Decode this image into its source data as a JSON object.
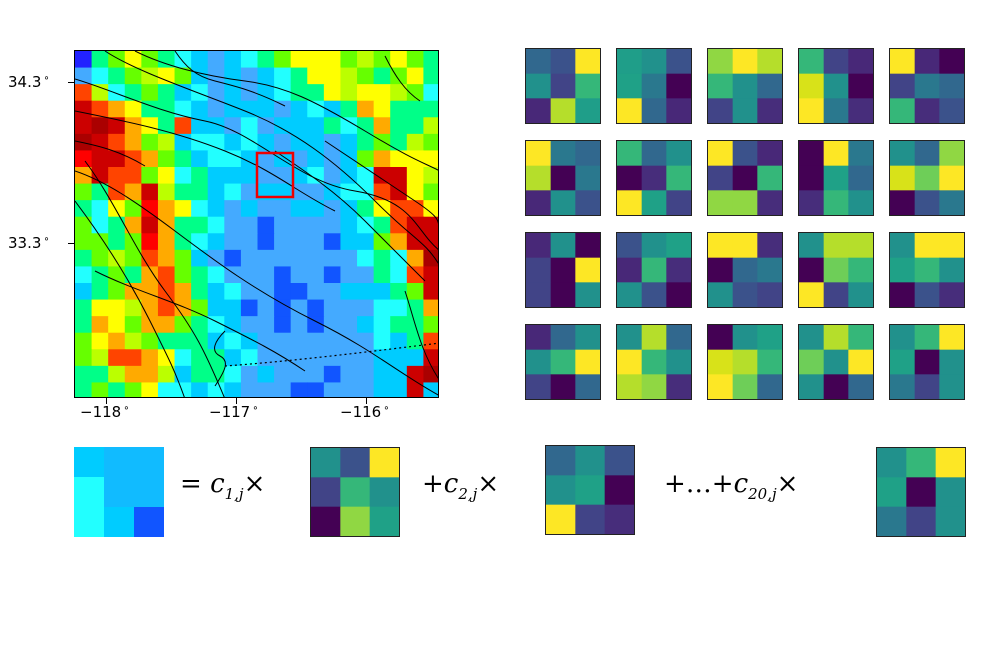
{
  "map": {
    "grid": [
      [
        "#22f",
        "#0f8",
        "#6f0",
        "#ff0",
        "#6f0",
        "#0f8",
        "#2ff",
        "#0cf",
        "#4af",
        "#0cf",
        "#2ff",
        "#0f8",
        "#6f0",
        "#ff0",
        "#ff0",
        "#ff0",
        "#6f0",
        "#bf0",
        "#6f0",
        "#ff0",
        "#6f0",
        "#0f8"
      ],
      [
        "#4af",
        "#2ff",
        "#0f8",
        "#6f0",
        "#bf0",
        "#ff0",
        "#6f0",
        "#0cf",
        "#4af",
        "#0cf",
        "#4af",
        "#0cf",
        "#2ff",
        "#0f8",
        "#ff0",
        "#ff0",
        "#bf0",
        "#6f0",
        "#0f8",
        "#6f0",
        "#ff0",
        "#0f8"
      ],
      [
        "#f40",
        "#bf0",
        "#2ff",
        "#0f8",
        "#6f0",
        "#0f8",
        "#0cf",
        "#2ff",
        "#4af",
        "#0cf",
        "#4af",
        "#0cf",
        "#2ff",
        "#0f8",
        "#0f8",
        "#ff0",
        "#bf0",
        "#ff0",
        "#ff0",
        "#bf0",
        "#6f0",
        "#2ff"
      ],
      [
        "#c00",
        "#f40",
        "#fa0",
        "#ff0",
        "#0f8",
        "#0f8",
        "#2ff",
        "#0cf",
        "#4af",
        "#0cf",
        "#0cf",
        "#0cf",
        "#4af",
        "#0cf",
        "#2ff",
        "#0cf",
        "#0f8",
        "#fa0",
        "#ff0",
        "#0f8",
        "#0f8",
        "#0f8"
      ],
      [
        "#c00",
        "#a00",
        "#c00",
        "#fa0",
        "#ff0",
        "#0f8",
        "#f40",
        "#0cf",
        "#0cf",
        "#4af",
        "#2ff",
        "#4af",
        "#0cf",
        "#0cf",
        "#0cf",
        "#0f8",
        "#2ff",
        "#0f8",
        "#fa0",
        "#0f8",
        "#0f8",
        "#bf0"
      ],
      [
        "#a00",
        "#c00",
        "#f40",
        "#fa0",
        "#6f0",
        "#bf0",
        "#0cf",
        "#2ff",
        "#2ff",
        "#0cf",
        "#2ff",
        "#0cf",
        "#4af",
        "#0cf",
        "#0cf",
        "#4af",
        "#0cf",
        "#0f8",
        "#6f0",
        "#0f8",
        "#bf0",
        "#6f0"
      ],
      [
        "#f00",
        "#c00",
        "#c00",
        "#f40",
        "#fa0",
        "#6f0",
        "#0f8",
        "#0cf",
        "#2ff",
        "#2ff",
        "#0cf",
        "#4af",
        "#0cf",
        "#4af",
        "#0cf",
        "#4af",
        "#0cf",
        "#6f0",
        "#fa0",
        "#ff0",
        "#ff0",
        "#ff0"
      ],
      [
        "#fa0",
        "#c00",
        "#f40",
        "#f40",
        "#6f0",
        "#ff0",
        "#2ff",
        "#0f8",
        "#0cf",
        "#0cf",
        "#0cf",
        "#4af",
        "#4af",
        "#0cf",
        "#2ff",
        "#4af",
        "#0cf",
        "#2ff",
        "#c00",
        "#c00",
        "#ff0",
        "#bf0"
      ],
      [
        "#6f0",
        "#0f8",
        "#f40",
        "#fa0",
        "#c00",
        "#bf0",
        "#0f8",
        "#0f8",
        "#0cf",
        "#2ff",
        "#4af",
        "#0cf",
        "#0cf",
        "#4af",
        "#4af",
        "#0cf",
        "#2ff",
        "#2ff",
        "#f40",
        "#c00",
        "#ff0",
        "#6f0"
      ],
      [
        "#0f8",
        "#2ff",
        "#ff0",
        "#6f0",
        "#f00",
        "#fa0",
        "#ff0",
        "#2ff",
        "#0cf",
        "#4af",
        "#0cf",
        "#4af",
        "#4af",
        "#0cf",
        "#0cf",
        "#4af",
        "#0cf",
        "#0f8",
        "#ff0",
        "#f40",
        "#f40",
        "#ff0"
      ],
      [
        "#6f0",
        "#2ff",
        "#0f8",
        "#fa0",
        "#c00",
        "#fa0",
        "#0f8",
        "#0f8",
        "#2ff",
        "#4af",
        "#4af",
        "#15f",
        "#4af",
        "#4af",
        "#4af",
        "#4af",
        "#0cf",
        "#2ff",
        "#0f8",
        "#f40",
        "#c00",
        "#c00"
      ],
      [
        "#6f0",
        "#6f0",
        "#0f8",
        "#6f0",
        "#f00",
        "#fa0",
        "#0f8",
        "#2ff",
        "#0cf",
        "#4af",
        "#4af",
        "#15f",
        "#4af",
        "#4af",
        "#4af",
        "#15f",
        "#0cf",
        "#0cf",
        "#6f0",
        "#fa0",
        "#c00",
        "#c00"
      ],
      [
        "#0f8",
        "#6f0",
        "#bf0",
        "#6f0",
        "#f40",
        "#fa0",
        "#6f0",
        "#0cf",
        "#4af",
        "#15f",
        "#4af",
        "#4af",
        "#4af",
        "#4af",
        "#4af",
        "#4af",
        "#4af",
        "#2ff",
        "#0f8",
        "#2ff",
        "#fa0",
        "#a00"
      ],
      [
        "#2ff",
        "#0f8",
        "#6f0",
        "#0f8",
        "#fa0",
        "#f40",
        "#6f0",
        "#0f8",
        "#2ff",
        "#4af",
        "#4af",
        "#4af",
        "#15f",
        "#4af",
        "#4af",
        "#15f",
        "#4af",
        "#4af",
        "#0f8",
        "#2ff",
        "#f40",
        "#c00"
      ],
      [
        "#0cf",
        "#0f8",
        "#6f0",
        "#fa0",
        "#fa0",
        "#f40",
        "#fa0",
        "#0f8",
        "#0cf",
        "#2ff",
        "#4af",
        "#4af",
        "#15f",
        "#15f",
        "#4af",
        "#4af",
        "#0cf",
        "#0cf",
        "#0cf",
        "#0f8",
        "#6f0",
        "#c00"
      ],
      [
        "#0f8",
        "#ff0",
        "#ff0",
        "#bf0",
        "#fa0",
        "#f40",
        "#fa0",
        "#6f0",
        "#0cf",
        "#0cf",
        "#15f",
        "#4af",
        "#15f",
        "#4af",
        "#15f",
        "#4af",
        "#4af",
        "#4af",
        "#2ff",
        "#2ff",
        "#0f8",
        "#fa0"
      ],
      [
        "#0f8",
        "#fa0",
        "#ff0",
        "#6f0",
        "#fa0",
        "#fa0",
        "#6f0",
        "#0f8",
        "#2ff",
        "#0cf",
        "#4af",
        "#4af",
        "#15f",
        "#4af",
        "#15f",
        "#4af",
        "#4af",
        "#0cf",
        "#2ff",
        "#0f8",
        "#0f8",
        "#6f0"
      ],
      [
        "#6f0",
        "#ff0",
        "#fa0",
        "#bf0",
        "#6f0",
        "#0f8",
        "#0f8",
        "#0f8",
        "#0cf",
        "#2ff",
        "#0cf",
        "#4af",
        "#4af",
        "#4af",
        "#4af",
        "#4af",
        "#4af",
        "#4af",
        "#2ff",
        "#0cf",
        "#0f8",
        "#f40"
      ],
      [
        "#6f0",
        "#bf0",
        "#f40",
        "#f40",
        "#fa0",
        "#ff0",
        "#2ff",
        "#0f8",
        "#0f8",
        "#0cf",
        "#2ff",
        "#4af",
        "#4af",
        "#4af",
        "#4af",
        "#4af",
        "#4af",
        "#4af",
        "#0cf",
        "#0cf",
        "#0cf",
        "#c00"
      ],
      [
        "#0f8",
        "#0f8",
        "#bf0",
        "#fa0",
        "#fa0",
        "#bf0",
        "#0cf",
        "#0f8",
        "#0f8",
        "#2ff",
        "#4af",
        "#0cf",
        "#4af",
        "#4af",
        "#4af",
        "#15f",
        "#4af",
        "#4af",
        "#0cf",
        "#0cf",
        "#c00",
        "#a00"
      ],
      [
        "#0f8",
        "#6f0",
        "#0f8",
        "#6f0",
        "#ff0",
        "#2ff",
        "#2ff",
        "#0cf",
        "#2ff",
        "#0cf",
        "#4af",
        "#4af",
        "#4af",
        "#15f",
        "#15f",
        "#4af",
        "#4af",
        "#4af",
        "#0cf",
        "#0cf",
        "#c00",
        "#0cf"
      ]
    ],
    "selection_box_color": "#e00"
  },
  "axes": {
    "y_ticks": [
      {
        "label": "34.3"
      },
      {
        "label": "33.3"
      }
    ],
    "x_ticks": [
      {
        "label": "−118"
      },
      {
        "label": "−117"
      },
      {
        "label": "−116"
      }
    ],
    "degree_symbol": "∘"
  },
  "atoms": [
    [
      "#31688e",
      "#3b528b",
      "#fde725",
      "#21918c",
      "#414487",
      "#35b779",
      "#482878",
      "#b5de2b",
      "#1f9e89"
    ],
    [
      "#1f9e89",
      "#21918c",
      "#3b528b",
      "#1fa187",
      "#2a788e",
      "#440154",
      "#fde725",
      "#31688e",
      "#482878"
    ],
    [
      "#90d743",
      "#fde725",
      "#b5de2b",
      "#35b779",
      "#21918c",
      "#31688e",
      "#414487",
      "#21918c",
      "#472d7b"
    ],
    [
      "#35b779",
      "#414487",
      "#482878",
      "#d8e219",
      "#21918c",
      "#440154",
      "#fde725",
      "#2a788e",
      "#472d7b"
    ],
    [
      "#fde725",
      "#482878",
      "#440154",
      "#414487",
      "#2a788e",
      "#31688e",
      "#35b779",
      "#472d7b",
      "#3b528b"
    ],
    [
      "#fde725",
      "#2a788e",
      "#31688e",
      "#b5de2b",
      "#440154",
      "#2a788e",
      "#482878",
      "#21918c",
      "#3b528b"
    ],
    [
      "#35b779",
      "#31688e",
      "#21918c",
      "#440154",
      "#472d7b",
      "#35b779",
      "#fde725",
      "#1fa187",
      "#414487"
    ],
    [
      "#fde725",
      "#3b528b",
      "#482878",
      "#414487",
      "#440154",
      "#35b779",
      "#90d743",
      "#90d743",
      "#472d7b"
    ],
    [
      "#440154",
      "#fde725",
      "#2a788e",
      "#440154",
      "#1fa187",
      "#31688e",
      "#472d7b",
      "#35b779",
      "#21918c"
    ],
    [
      "#21918c",
      "#31688e",
      "#90d743",
      "#d8e219",
      "#6ece58",
      "#fde725",
      "#440154",
      "#3b528b",
      "#2a788e"
    ],
    [
      "#482878",
      "#21918c",
      "#440154",
      "#414487",
      "#440154",
      "#fde725",
      "#414487",
      "#440154",
      "#21918c"
    ],
    [
      "#3b528b",
      "#21918c",
      "#1fa187",
      "#482878",
      "#35b779",
      "#472d7b",
      "#21918c",
      "#3b528b",
      "#440154"
    ],
    [
      "#fde725",
      "#fde725",
      "#472d7b",
      "#440154",
      "#31688e",
      "#2a788e",
      "#21918c",
      "#3b528b",
      "#414487"
    ],
    [
      "#21918c",
      "#b5de2b",
      "#b5de2b",
      "#440154",
      "#6ece58",
      "#35b779",
      "#fde725",
      "#414487",
      "#21918c"
    ],
    [
      "#21918c",
      "#fde725",
      "#fde725",
      "#1fa187",
      "#35b779",
      "#21918c",
      "#440154",
      "#3b528b",
      "#472d7b"
    ],
    [
      "#482878",
      "#31688e",
      "#21918c",
      "#21918c",
      "#35b779",
      "#fde725",
      "#414487",
      "#440154",
      "#31688e"
    ],
    [
      "#21918c",
      "#b5de2b",
      "#31688e",
      "#fde725",
      "#35b779",
      "#21918c",
      "#b5de2b",
      "#90d743",
      "#472d7b"
    ],
    [
      "#440154",
      "#21918c",
      "#1fa187",
      "#d8e219",
      "#b5de2b",
      "#35b779",
      "#fde725",
      "#6ece58",
      "#31688e"
    ],
    [
      "#21918c",
      "#b5de2b",
      "#35b779",
      "#6ece58",
      "#21918c",
      "#fde725",
      "#21918c",
      "#440154",
      "#31688e"
    ],
    [
      "#21918c",
      "#35b779",
      "#fde725",
      "#1fa187",
      "#440154",
      "#21918c",
      "#2a788e",
      "#414487",
      "#21918c"
    ]
  ],
  "equation": {
    "target_patch": [
      "#0cf",
      "#1bf",
      "#1bf",
      "#2ff",
      "#1bf",
      "#1bf",
      "#2ff",
      "#0cf",
      "#15f"
    ],
    "term1_prefix": "=",
    "term1_coef": "c",
    "term1_sub": "1,j",
    "term2_prefix": "+",
    "term2_coef": "c",
    "term2_sub": "2,j",
    "term3_prefix": "+…+",
    "term3_coef": "c",
    "term3_sub": "20,j",
    "times": "×",
    "atom1": [
      "#21918c",
      "#3b528b",
      "#fde725",
      "#414487",
      "#35b779",
      "#21918c",
      "#440154",
      "#90d743",
      "#1fa187"
    ],
    "atom2": [
      "#31688e",
      "#21918c",
      "#3b528b",
      "#21918c",
      "#1fa187",
      "#440154",
      "#fde725",
      "#414487",
      "#472d7b"
    ],
    "atom3": [
      "#21918c",
      "#35b779",
      "#fde725",
      "#1fa187",
      "#440154",
      "#21918c",
      "#2a788e",
      "#414487",
      "#21918c"
    ]
  }
}
